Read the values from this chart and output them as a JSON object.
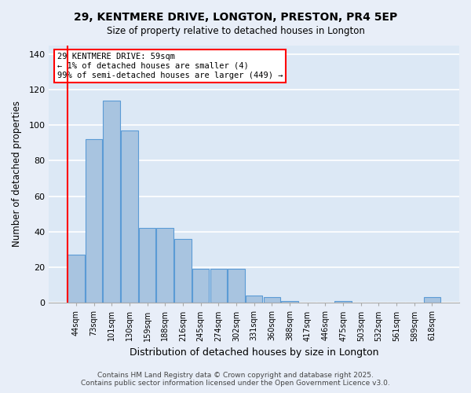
{
  "title": "29, KENTMERE DRIVE, LONGTON, PRESTON, PR4 5EP",
  "subtitle": "Size of property relative to detached houses in Longton",
  "xlabel": "Distribution of detached houses by size in Longton",
  "ylabel": "Number of detached properties",
  "bar_color": "#a8c4e0",
  "bar_edge_color": "#5b9bd5",
  "background_color": "#dce8f5",
  "grid_color": "#ffffff",
  "annotation_box_color": "#ff0000",
  "vline_color": "#ff0000",
  "categories": [
    "44sqm",
    "73sqm",
    "101sqm",
    "130sqm",
    "159sqm",
    "188sqm",
    "216sqm",
    "245sqm",
    "274sqm",
    "302sqm",
    "331sqm",
    "360sqm",
    "388sqm",
    "417sqm",
    "446sqm",
    "475sqm",
    "503sqm",
    "532sqm",
    "561sqm",
    "589sqm",
    "618sqm"
  ],
  "values": [
    27,
    92,
    114,
    97,
    42,
    42,
    36,
    19,
    19,
    19,
    4,
    3,
    1,
    0,
    0,
    1,
    0,
    0,
    0,
    0,
    3
  ],
  "annotation_title": "29 KENTMERE DRIVE: 59sqm",
  "annotation_line1": "← 1% of detached houses are smaller (4)",
  "annotation_line2": "99% of semi-detached houses are larger (449) →",
  "ylim": [
    0,
    145
  ],
  "yticks": [
    0,
    20,
    40,
    60,
    80,
    100,
    120,
    140
  ],
  "footer_line1": "Contains HM Land Registry data © Crown copyright and database right 2025.",
  "footer_line2": "Contains public sector information licensed under the Open Government Licence v3.0."
}
